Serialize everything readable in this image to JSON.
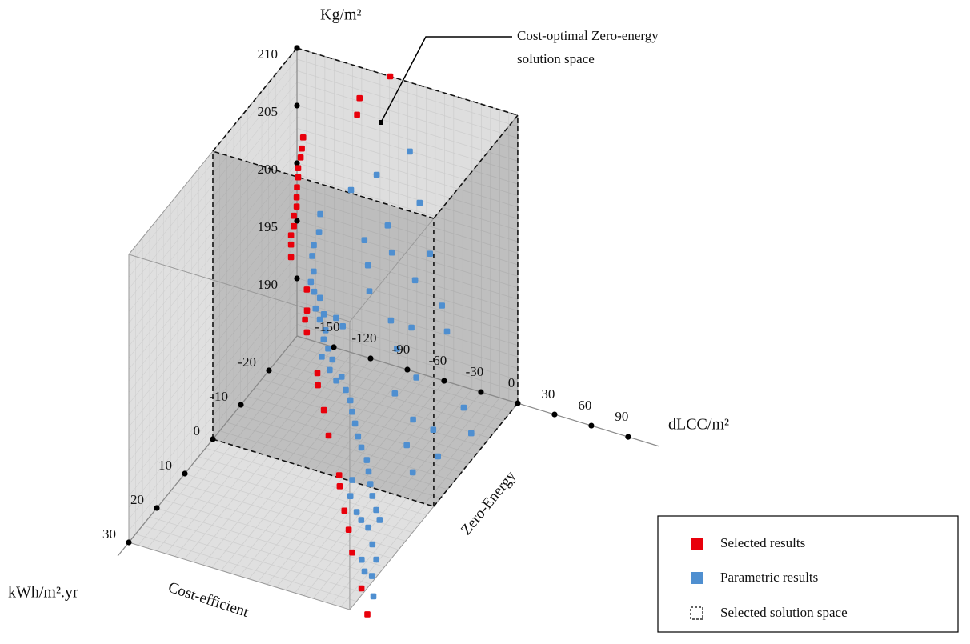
{
  "chart_data": {
    "type": "scatter3d",
    "xlabel": "dLCC/m²",
    "ylabel": "kWh/m².yr",
    "zlabel": "Kg/m²",
    "xlim": [
      -180,
      90
    ],
    "ylim": [
      -30,
      30
    ],
    "zlim": [
      185,
      210
    ],
    "xticks": [
      -150,
      -120,
      -90,
      -60,
      -30,
      0,
      30,
      60,
      90
    ],
    "yticks": [
      -20,
      -10,
      0,
      10,
      20,
      30
    ],
    "zticks": [
      190,
      195,
      200,
      205,
      210
    ],
    "face_labels": [
      "Cost-efficient",
      "Zero-Energy"
    ],
    "annotation": [
      "Cost-optimal Zero-energy",
      "solution space"
    ],
    "selected_space": {
      "name": "Selected solution space",
      "x": [
        -180,
        0
      ],
      "y": [
        -30,
        0
      ],
      "z": [
        185,
        210
      ]
    },
    "legend": "lower right",
    "series": [
      {
        "name": "Selected results",
        "color": "#e8000b",
        "x": [
          -104,
          -129,
          -131,
          -175,
          -176,
          -177,
          -179,
          -179,
          -180,
          -178,
          -178,
          -178,
          -178,
          -178,
          -178,
          -178,
          -156,
          -149,
          -146,
          -140,
          -120,
          -115,
          -101,
          -88,
          -68,
          -63,
          -50,
          -42,
          -30,
          -11,
          3
        ],
        "y": [
          -30,
          -30,
          -30,
          -30,
          -30,
          -30,
          -30,
          -30,
          -30,
          -29,
          -29,
          -28,
          -28,
          -27,
          -27,
          -27,
          -23,
          -20,
          -18,
          -16,
          -11,
          -9,
          -5,
          -1,
          4,
          6,
          10,
          12,
          16,
          21,
          25
        ],
        "z": [
          210,
          207.3,
          205.8,
          202.4,
          201.4,
          200.6,
          199.6,
          198.8,
          197.9,
          197.4,
          196.6,
          196.1,
          195.2,
          194.7,
          193.9,
          192.8,
          191.9,
          191.2,
          191.1,
          190.8,
          189.4,
          189.1,
          188.6,
          188.0,
          186.7,
          186.5,
          186.0,
          185.2,
          184.8,
          183.8,
          183.2
        ]
      },
      {
        "name": "Parametric results",
        "color": "#4f8fd0",
        "x": [
          -88,
          -115,
          -136,
          -80,
          -161,
          -106,
          -162,
          -125,
          -164,
          -98,
          -163,
          -67,
          -113,
          -155,
          -155,
          -70,
          -150,
          -105,
          -143,
          -142,
          -39,
          -133,
          -123,
          -76,
          -134,
          -127,
          -113,
          -57,
          -28,
          -124,
          -118,
          -121,
          -110,
          -62,
          -110,
          -100,
          -98,
          -37,
          -90,
          -50,
          -84,
          13,
          -78,
          -26,
          -71,
          -64,
          -5,
          26,
          -59,
          -22,
          8,
          -50,
          -44,
          -8,
          -38,
          -34,
          -24,
          -19,
          -26,
          -18,
          -8,
          -7,
          1,
          -34,
          -55,
          -52,
          -40,
          -20,
          -13
        ],
        "y": [
          -30,
          -30,
          -30,
          -30,
          -30,
          -30,
          -30,
          -30,
          -29,
          -28,
          -28,
          -28,
          -26,
          -25,
          -24,
          -24,
          -23,
          -23,
          -22,
          -20,
          -20,
          -19,
          -19,
          -18,
          -18,
          -17,
          -17,
          -17,
          -17,
          -15,
          -14,
          -13,
          -12,
          -14,
          -11,
          -9,
          -10,
          -10,
          -8,
          -8,
          -7,
          -5,
          -5,
          -4,
          -3,
          -1,
          -2,
          -2,
          0,
          0,
          2,
          2,
          4,
          4,
          6,
          7,
          10,
          11,
          12,
          14,
          17,
          19,
          22,
          11,
          5,
          7,
          10,
          17,
          19
        ],
        "z": [
          204.0,
          201.1,
          199.1,
          199.8,
          196.2,
          197.0,
          194.6,
          195.1,
          193.7,
          195.5,
          193.1,
          196.4,
          194.5,
          192.9,
          192.3,
          195.2,
          191.9,
          193.4,
          191.9,
          191.6,
          195.2,
          191.7,
          191.7,
          193.3,
          191.5,
          191.1,
          191.9,
          193.6,
          194.2,
          191.0,
          190.7,
          190.2,
          190.6,
          192.5,
          190.0,
          190.0,
          190.1,
          192.0,
          189.8,
          190.8,
          189.4,
          192.5,
          189.2,
          190.5,
          189.0,
          188.7,
          190.9,
          191.6,
          188.2,
          189.6,
          190.2,
          188.0,
          187.8,
          188.9,
          187.5,
          186.9,
          186.9,
          186.5,
          185.9,
          185.3,
          185.2,
          184.4,
          183.8,
          186.0,
          187.0,
          186.3,
          186.2,
          184.8,
          184.6
        ]
      }
    ]
  }
}
